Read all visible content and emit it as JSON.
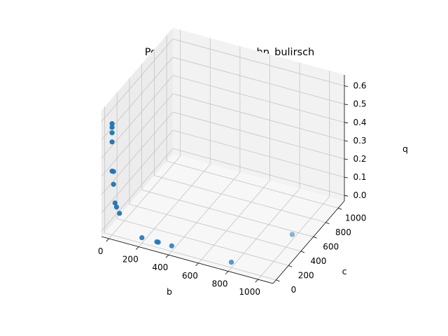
{
  "chart_data": {
    "type": "scatter",
    "projection": "3d",
    "title": "Point cloud for g_one_hp_bulirsch",
    "xlabel": "b",
    "ylabel": "c",
    "zlabel": "q",
    "xlim": [
      -50,
      1100
    ],
    "ylim": [
      -50,
      1100
    ],
    "zlim": [
      -0.03,
      0.66
    ],
    "x_ticks": [
      "0",
      "200",
      "400",
      "600",
      "800",
      "1000"
    ],
    "y_ticks": [
      "0",
      "200",
      "400",
      "600",
      "800",
      "1000"
    ],
    "z_ticks": [
      "0.0",
      "0.1",
      "0.2",
      "0.3",
      "0.4",
      "0.5",
      "0.6"
    ],
    "grid": true,
    "color": "#1f77b4",
    "points": [
      {
        "x": 0,
        "y": 0,
        "z": 0.58
      },
      {
        "x": 0,
        "y": 0,
        "z": 0.56
      },
      {
        "x": 0,
        "y": 0,
        "z": 0.53
      },
      {
        "x": 0,
        "y": 0,
        "z": 0.48
      },
      {
        "x": 0,
        "y": 0,
        "z": 0.32
      },
      {
        "x": 10,
        "y": 0,
        "z": 0.32
      },
      {
        "x": 10,
        "y": 0,
        "z": 0.25
      },
      {
        "x": 20,
        "y": 0,
        "z": 0.15
      },
      {
        "x": 30,
        "y": 0,
        "z": 0.13
      },
      {
        "x": 50,
        "y": 0,
        "z": 0.1
      },
      {
        "x": 200,
        "y": 0,
        "z": 0.0
      },
      {
        "x": 300,
        "y": 0,
        "z": 0.0
      },
      {
        "x": 310,
        "y": 0,
        "z": 0.0
      },
      {
        "x": 400,
        "y": 0,
        "z": 0.0
      },
      {
        "x": 800,
        "y": 0,
        "z": 0.0
      },
      {
        "x": 1000,
        "y": 500,
        "z": 0.0
      }
    ]
  }
}
